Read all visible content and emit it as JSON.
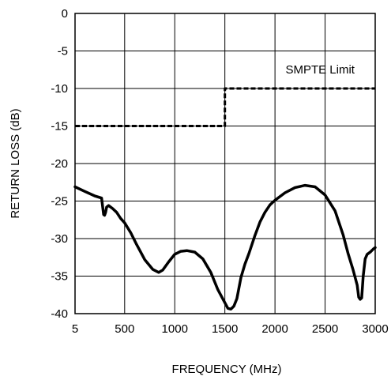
{
  "chart_data": {
    "type": "line",
    "title": "",
    "xlabel": "FREQUENCY (MHz)",
    "ylabel": "RETURN LOSS (dB)",
    "xlim": [
      5,
      3000
    ],
    "ylim": [
      -40,
      0
    ],
    "grid": true,
    "x_ticks": [
      5,
      500,
      1000,
      1500,
      2000,
      2500,
      3000
    ],
    "x_tick_labels": [
      "5",
      "500",
      "1000",
      "1500",
      "2000",
      "2500",
      "3000"
    ],
    "y_ticks": [
      0,
      -5,
      -10,
      -15,
      -20,
      -25,
      -30,
      -35,
      -40
    ],
    "y_tick_labels": [
      "0",
      "-5",
      "-10",
      "-15",
      "-20",
      "-25",
      "-30",
      "-35",
      "-40"
    ],
    "series": [
      {
        "style": "solid",
        "x": [
          5,
          100,
          200,
          270,
          290,
          300,
          310,
          320,
          340,
          380,
          420,
          460,
          500,
          560,
          620,
          700,
          780,
          840,
          880,
          940,
          1000,
          1060,
          1120,
          1200,
          1280,
          1360,
          1430,
          1490,
          1530,
          1560,
          1590,
          1620,
          1660,
          1700,
          1740,
          1800,
          1850,
          1900,
          1950,
          2000,
          2100,
          2200,
          2300,
          2400,
          2500,
          2600,
          2680,
          2730,
          2780,
          2820,
          2835,
          2850,
          2865,
          2880,
          2900,
          2920,
          2950,
          2980,
          3000
        ],
        "y": [
          -23.1,
          -23.7,
          -24.3,
          -24.6,
          -26.8,
          -26.9,
          -26.5,
          -25.8,
          -25.6,
          -26.0,
          -26.5,
          -27.3,
          -27.9,
          -29.2,
          -30.8,
          -32.8,
          -34.1,
          -34.5,
          -34.2,
          -33.1,
          -32.1,
          -31.7,
          -31.6,
          -31.8,
          -32.7,
          -34.5,
          -36.8,
          -38.3,
          -39.3,
          -39.4,
          -39.0,
          -38.0,
          -35.2,
          -33.4,
          -32.0,
          -29.6,
          -27.8,
          -26.5,
          -25.5,
          -24.9,
          -23.9,
          -23.2,
          -22.9,
          -23.1,
          -24.2,
          -26.3,
          -29.5,
          -32.0,
          -34.2,
          -36.2,
          -37.8,
          -38.1,
          -37.9,
          -35.0,
          -32.7,
          -32.1,
          -31.8,
          -31.4,
          -31.2
        ]
      },
      {
        "style": "dashed",
        "name": "SMPTE Limit",
        "x": [
          5,
          1500,
          1500,
          3000
        ],
        "y": [
          -15,
          -15,
          -10,
          -10
        ]
      }
    ],
    "annotations": [
      {
        "text": "SMPTE Limit",
        "x": 2450,
        "y": -8
      }
    ]
  }
}
